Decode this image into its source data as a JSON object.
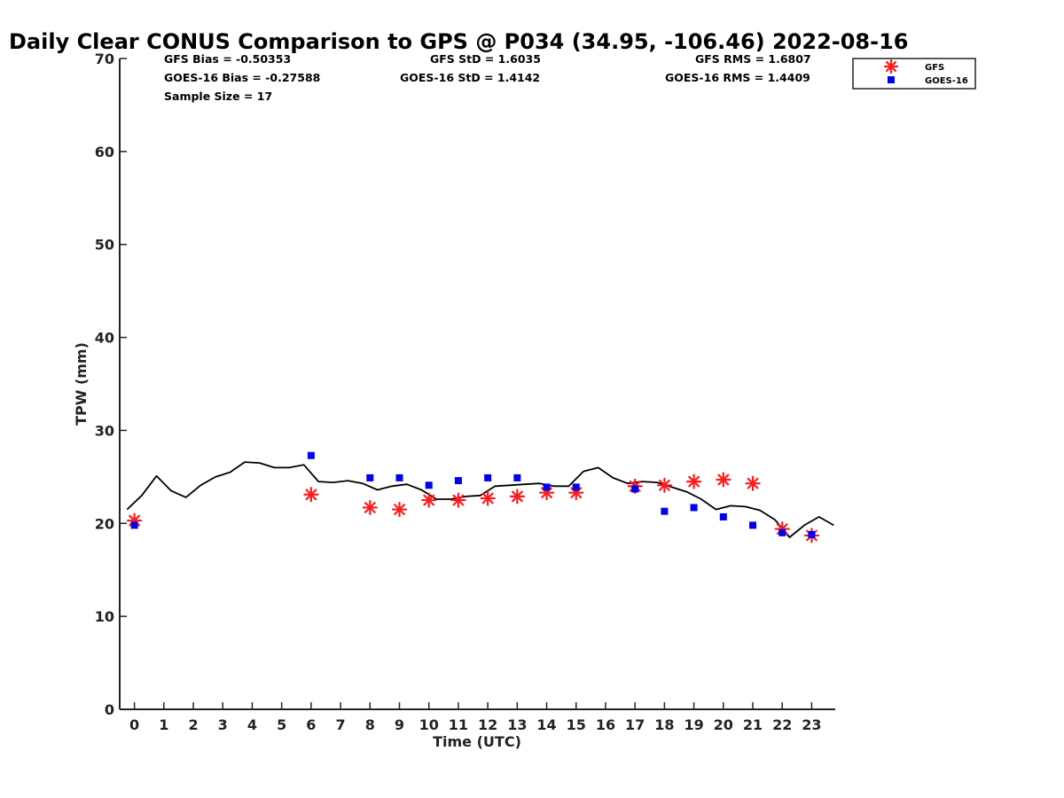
{
  "chart_data": {
    "type": "scatter",
    "title": "Daily Clear CONUS Comparison to GPS @ P034 (34.95, -106.46) 2022-08-16",
    "xlabel": "Time (UTC)",
    "ylabel": "TPW (mm)",
    "xlim": [
      -0.5,
      23.8
    ],
    "ylim": [
      0,
      70
    ],
    "x_ticks": [
      "0",
      "1",
      "2",
      "3",
      "4",
      "5",
      "6",
      "7",
      "8",
      "9",
      "10",
      "11",
      "12",
      "13",
      "14",
      "15",
      "16",
      "17",
      "18",
      "19",
      "20",
      "21",
      "22",
      "23"
    ],
    "y_ticks": [
      "0",
      "10",
      "20",
      "30",
      "40",
      "50",
      "60",
      "70"
    ],
    "grid": false,
    "legend_position": "top-right",
    "stats": [
      [
        "GFS Bias = -0.50353",
        "GFS StD = 1.6035",
        "GFS RMS = 1.6807"
      ],
      [
        "GOES-16 Bias = -0.27588",
        "GOES-16 StD = 1.4142",
        "GOES-16 RMS = 1.4409"
      ],
      [
        "Sample Size = 17"
      ]
    ],
    "series": [
      {
        "name": "GFS",
        "marker": "asterisk",
        "color": "#ff1a1a",
        "x": [
          0,
          6,
          8,
          9,
          10,
          11,
          12,
          13,
          14,
          15,
          17,
          18,
          19,
          20,
          21,
          22,
          23
        ],
        "y": [
          20.3,
          23.1,
          21.7,
          21.5,
          22.5,
          22.5,
          22.7,
          22.9,
          23.3,
          23.3,
          24.0,
          24.1,
          24.5,
          24.7,
          24.3,
          19.4,
          18.7
        ]
      },
      {
        "name": "GOES-16",
        "marker": "square",
        "color": "#0000ee",
        "x": [
          0,
          6,
          8,
          9,
          10,
          11,
          12,
          13,
          14,
          15,
          17,
          18,
          19,
          20,
          21,
          22,
          23
        ],
        "y": [
          19.8,
          27.3,
          24.9,
          24.9,
          24.1,
          24.6,
          24.9,
          24.9,
          23.9,
          23.9,
          23.7,
          21.3,
          21.7,
          20.7,
          19.8,
          19.0,
          18.8
        ]
      },
      {
        "marker": "line",
        "color": "#000000",
        "x": [
          -0.25,
          0.25,
          0.75,
          1.25,
          1.75,
          2.25,
          2.75,
          3.25,
          3.75,
          4.25,
          4.75,
          5.25,
          5.75,
          6.25,
          6.75,
          7.25,
          7.75,
          8.25,
          8.75,
          9.25,
          9.75,
          10.25,
          10.75,
          11.25,
          11.75,
          12.25,
          12.75,
          13.25,
          13.75,
          14.25,
          14.75,
          15.25,
          15.75,
          16.25,
          16.75,
          17.25,
          17.75,
          18.25,
          18.75,
          19.25,
          19.75,
          20.25,
          20.75,
          21.25,
          21.75,
          22.25,
          22.75,
          23.25,
          23.75
        ],
        "y": [
          21.5,
          23.0,
          25.1,
          23.5,
          22.8,
          24.1,
          25.0,
          25.5,
          26.6,
          26.5,
          26.0,
          26.0,
          26.3,
          24.5,
          24.4,
          24.6,
          24.3,
          23.6,
          24.0,
          24.2,
          23.6,
          22.6,
          22.6,
          22.9,
          23.0,
          24.0,
          24.1,
          24.2,
          24.3,
          24.0,
          24.0,
          25.6,
          26.0,
          24.9,
          24.3,
          24.5,
          24.4,
          23.9,
          23.4,
          22.6,
          21.5,
          21.9,
          21.8,
          21.4,
          20.4,
          18.5,
          19.8,
          20.7,
          19.8
        ]
      }
    ]
  }
}
